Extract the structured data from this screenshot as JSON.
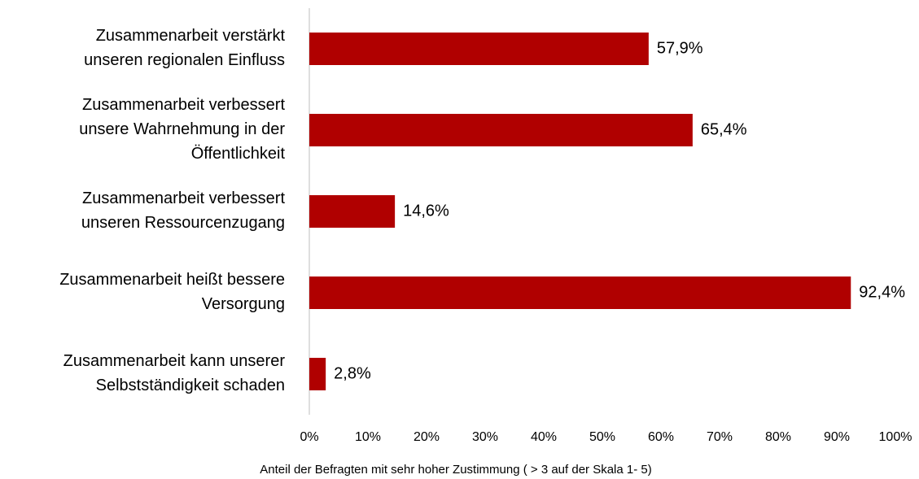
{
  "chart_data": {
    "type": "barh",
    "categories": [
      "Zusammenarbeit verstärkt unseren regionalen Einfluss",
      "Zusammenarbeit verbessert unsere Wahrnehmung in der Öffentlichkeit",
      "Zusammenarbeit verbessert unseren Ressourcenzugang",
      "Zusammenarbeit heißt bessere Versorgung",
      "Zusammenarbeit kann unserer Selbstständigkeit schaden"
    ],
    "values": [
      57.9,
      65.4,
      14.6,
      92.4,
      2.8
    ],
    "value_labels": [
      "57,9%",
      "65,4%",
      "14,6%",
      "92,4%",
      "2,8%"
    ],
    "color": "#b00000",
    "xlim": [
      0,
      100
    ],
    "xticks": [
      {
        "value": 0,
        "label": "0%"
      },
      {
        "value": 10,
        "label": "10%"
      },
      {
        "value": 20,
        "label": "20%"
      },
      {
        "value": 30,
        "label": "30%"
      },
      {
        "value": 40,
        "label": "40%"
      },
      {
        "value": 50,
        "label": "50%"
      },
      {
        "value": 60,
        "label": "60%"
      },
      {
        "value": 70,
        "label": "70%"
      },
      {
        "value": 80,
        "label": "80%"
      },
      {
        "value": 90,
        "label": "90%"
      },
      {
        "value": 100,
        "label": "100%"
      }
    ],
    "x_label": "Anteil der Befragten mit sehr hoher Zustimmung ( > 3 auf der Skala 1- 5)",
    "grid": false
  }
}
